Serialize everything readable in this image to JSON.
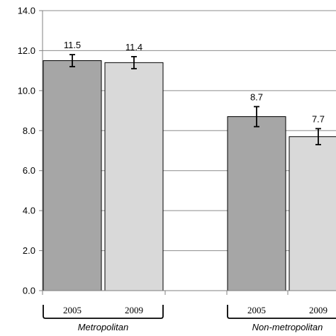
{
  "chart_data": {
    "type": "bar",
    "title": "",
    "xlabel": "",
    "ylabel": "",
    "ylim": [
      0,
      14
    ],
    "yticks": [
      "0.0",
      "2.0",
      "4.0",
      "6.0",
      "8.0",
      "10.0",
      "12.0",
      "14.0"
    ],
    "grid": "horizontal",
    "groups": [
      {
        "label": "Metropolitan",
        "bars": [
          {
            "year": "2005",
            "value": 11.5,
            "value_label": "11.5",
            "error_low": 11.2,
            "error_high": 11.8,
            "color": "#a6a6a6"
          },
          {
            "year": "2009",
            "value": 11.4,
            "value_label": "11.4",
            "error_low": 11.1,
            "error_high": 11.7,
            "color": "#d9d9d9"
          }
        ]
      },
      {
        "label": "Non-metropolitan",
        "bars": [
          {
            "year": "2005",
            "value": 8.7,
            "value_label": "8.7",
            "error_low": 8.2,
            "error_high": 9.2,
            "color": "#a6a6a6"
          },
          {
            "year": "2009",
            "value": 7.7,
            "value_label": "7.7",
            "error_low": 7.3,
            "error_high": 8.1,
            "color": "#d9d9d9"
          }
        ]
      }
    ]
  }
}
